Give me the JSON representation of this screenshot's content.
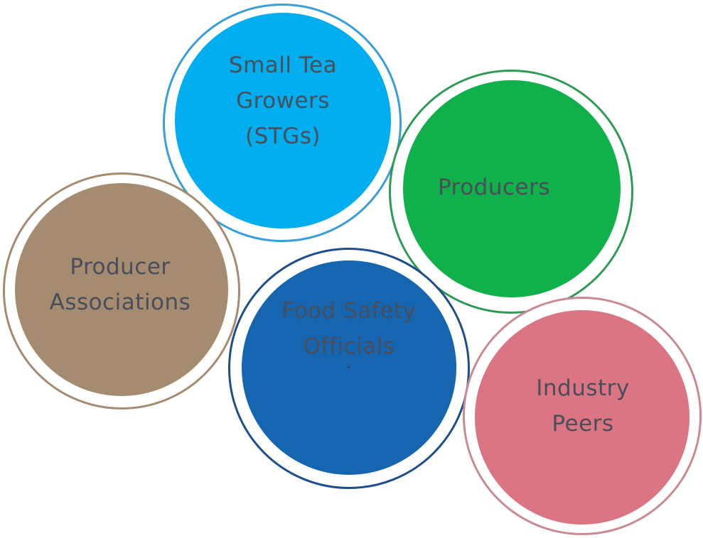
{
  "nodes": [
    {
      "id": "stg",
      "label": "Small Tea\nGrowers\n(STGs)",
      "color": "#00aeef",
      "ring_color": "#3a9fd8"
    },
    {
      "id": "prod",
      "label": "Producers",
      "color": "#10b04a",
      "ring_color": "#2f9a55"
    },
    {
      "id": "pa",
      "label": "Producer\nAssociations",
      "color": "#a58b70",
      "ring_color": "#a58b70"
    },
    {
      "id": "fso",
      "label": "Food Safety\nOfficials",
      "color": "#1565b0",
      "ring_color": "#1e4f8c"
    },
    {
      "id": "ip",
      "label": "Industry\nPeers",
      "color": "#db7583",
      "ring_color": "#c98a93"
    }
  ]
}
